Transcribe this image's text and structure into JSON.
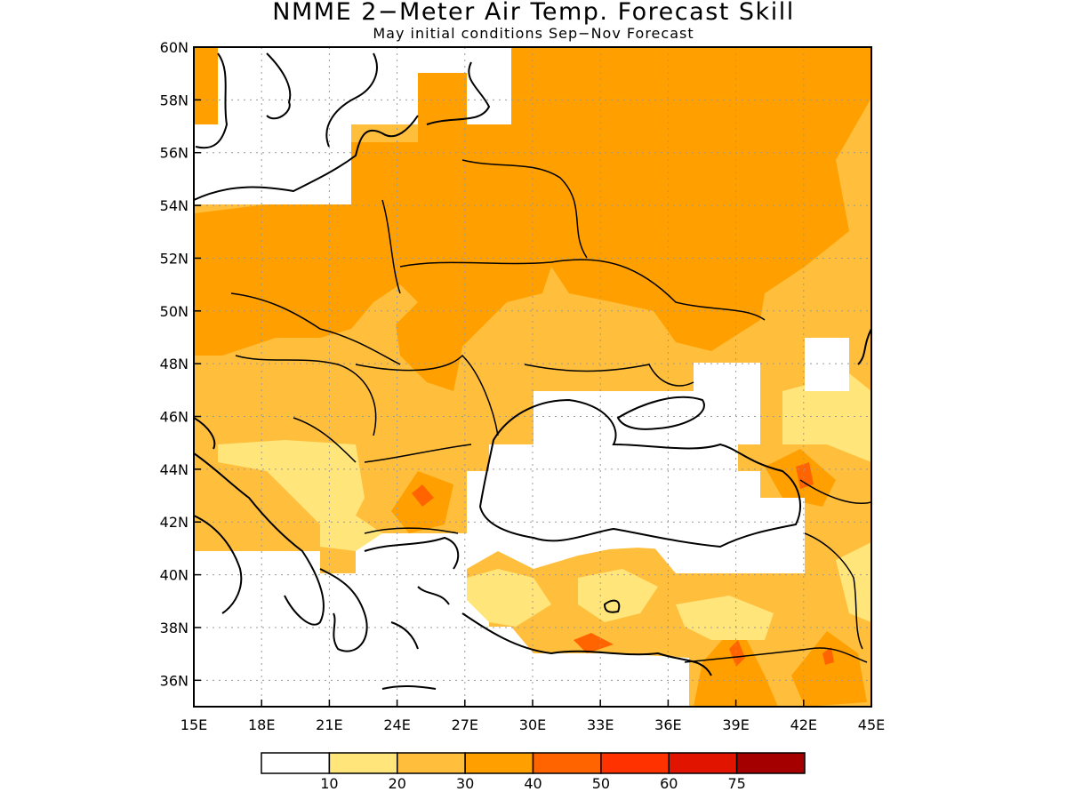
{
  "title": "NMME 2−Meter Air Temp. Forecast Skill",
  "subtitle": "May initial conditions  Sep−Nov Forecast",
  "map": {
    "lon_range": [
      15,
      45
    ],
    "lat_range": [
      35,
      60
    ],
    "lon_ticks": [
      "15E",
      "18E",
      "21E",
      "24E",
      "27E",
      "30E",
      "33E",
      "36E",
      "39E",
      "42E",
      "45E"
    ],
    "lat_ticks": [
      "60N",
      "58N",
      "56N",
      "54N",
      "52N",
      "50N",
      "48N",
      "46N",
      "44N",
      "42N",
      "40N",
      "38N",
      "36N"
    ],
    "grid": "dotted",
    "region": "Eastern Europe / Black Sea"
  },
  "colorbar": {
    "labels": [
      "10",
      "20",
      "30",
      "40",
      "50",
      "60",
      "75"
    ],
    "colors": [
      "#ffffff",
      "#ffe57a",
      "#ffbe3c",
      "#ffa000",
      "#ff6400",
      "#ff3200",
      "#e11400",
      "#a50000"
    ]
  },
  "skill_regions": {
    "colors": {
      "c10": "#ffe57a",
      "c20": "#ffbe3c",
      "c30": "#ffa000",
      "c40": "#ff6400",
      "c50": "#ff3200"
    }
  }
}
